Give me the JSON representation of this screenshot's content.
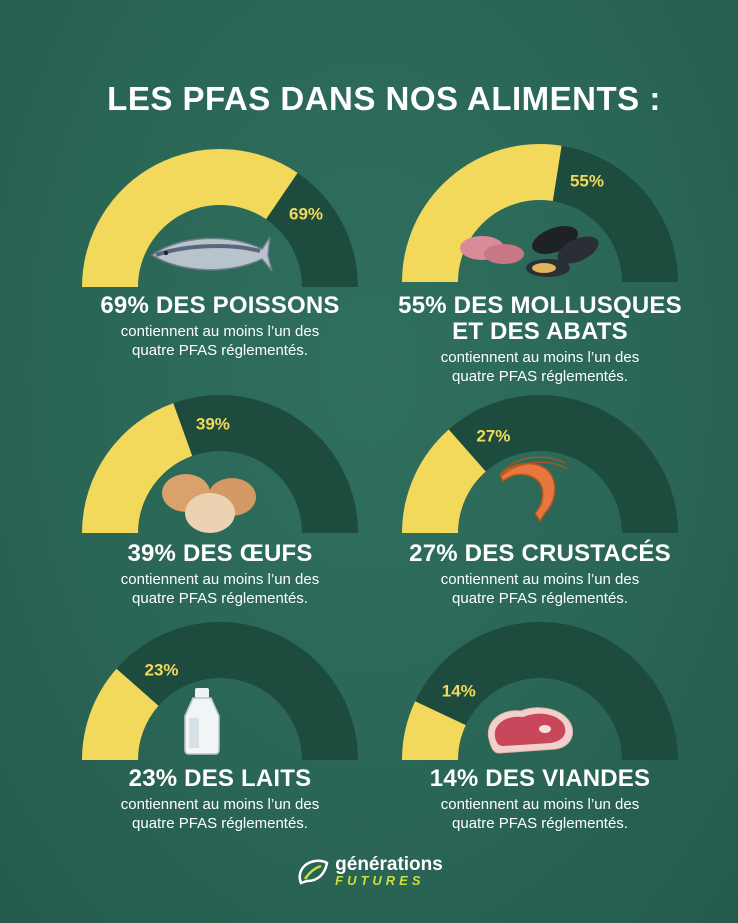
{
  "title": "LES PFAS DANS NOS ALIMENTS :",
  "colors": {
    "background": "#2a6656",
    "filled": "#f2d95c",
    "remaining": "#1d4c3f",
    "text": "#ffffff",
    "accent_label": "#f2d95c",
    "logo_accent": "#c9df3d"
  },
  "chart_data": {
    "type": "gauge",
    "items": [
      {
        "value": 69,
        "label": "69%",
        "title": [
          "69% DES POISSONS"
        ],
        "subtitle": [
          "contiennent au moins l’un des",
          "quatre PFAS réglementés."
        ],
        "icon": "fish-icon"
      },
      {
        "value": 55,
        "label": "55%",
        "title": [
          "55% DES MOLLUSQUES",
          "ET DES ABATS"
        ],
        "subtitle": [
          "contiennent au moins l’un des",
          "quatre PFAS réglementés."
        ],
        "icon": "mussels-offal-icon"
      },
      {
        "value": 39,
        "label": "39%",
        "title": [
          "39% DES ŒUFS"
        ],
        "subtitle": [
          "contiennent au moins l’un des",
          "quatre PFAS réglementés."
        ],
        "icon": "eggs-icon"
      },
      {
        "value": 27,
        "label": "27%",
        "title": [
          "27% DES CRUSTACÉS"
        ],
        "subtitle": [
          "contiennent au moins l’un des",
          "quatre PFAS réglementés."
        ],
        "icon": "shrimp-icon"
      },
      {
        "value": 23,
        "label": "23%",
        "title": [
          "23% DES LAITS"
        ],
        "subtitle": [
          "contiennent au moins l’un des",
          "quatre PFAS réglementés."
        ],
        "icon": "milk-bottle-icon"
      },
      {
        "value": 14,
        "label": "14%",
        "title": [
          "14% DES VIANDES"
        ],
        "subtitle": [
          "contiennent au moins l’un des",
          "quatre PFAS réglementés."
        ],
        "icon": "steak-icon"
      }
    ]
  },
  "logo": {
    "line1": "générations",
    "line2": "FUTURES",
    "icon": "leaf-logo-icon"
  }
}
